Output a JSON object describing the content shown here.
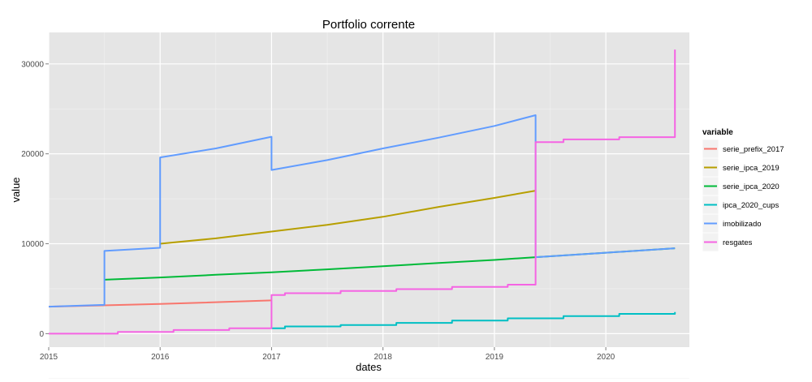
{
  "chart_data": {
    "type": "line",
    "title": "Portfolio corrente",
    "xlabel": "dates",
    "ylabel": "value",
    "xlim": [
      2015.0,
      2020.75
    ],
    "ylim": [
      -1500,
      33500
    ],
    "x_ticks": [
      2015,
      2016,
      2017,
      2018,
      2019,
      2020
    ],
    "y_ticks": [
      0,
      10000,
      20000,
      30000
    ],
    "x_tick_labels": [
      "2015",
      "2016",
      "2017",
      "2018",
      "2019",
      "2020"
    ],
    "y_tick_labels": [
      "0",
      "10000",
      "20000",
      "30000"
    ],
    "grid": true,
    "legend": {
      "title": "variable",
      "position": "right"
    },
    "series": [
      {
        "name": "serie_prefix_2017",
        "color": "#F8766D",
        "points": [
          [
            2015.0,
            3000
          ],
          [
            2016.0,
            3300
          ],
          [
            2017.0,
            3700
          ]
        ]
      },
      {
        "name": "serie_ipca_2019",
        "color": "#B79F00",
        "points": [
          [
            2016.0,
            10000
          ],
          [
            2016.5,
            10600
          ],
          [
            2017.0,
            11350
          ],
          [
            2017.5,
            12100
          ],
          [
            2018.0,
            13000
          ],
          [
            2018.5,
            14100
          ],
          [
            2019.0,
            15100
          ],
          [
            2019.37,
            15900
          ]
        ]
      },
      {
        "name": "serie_ipca_2020",
        "color": "#00BA38",
        "points": [
          [
            2015.5,
            6000
          ],
          [
            2016.0,
            6250
          ],
          [
            2016.5,
            6550
          ],
          [
            2017.0,
            6820
          ],
          [
            2017.5,
            7150
          ],
          [
            2018.0,
            7500
          ],
          [
            2018.5,
            7850
          ],
          [
            2019.0,
            8200
          ],
          [
            2019.37,
            8500
          ],
          [
            2020.0,
            9000
          ],
          [
            2020.62,
            9500
          ]
        ]
      },
      {
        "name": "ipca_2020_cups",
        "color": "#00BFC4",
        "points": [
          [
            2017.0,
            600
          ],
          [
            2017.12,
            600
          ],
          [
            2017.12,
            800
          ],
          [
            2017.62,
            800
          ],
          [
            2017.62,
            950
          ],
          [
            2018.12,
            950
          ],
          [
            2018.12,
            1200
          ],
          [
            2018.62,
            1200
          ],
          [
            2018.62,
            1450
          ],
          [
            2019.12,
            1450
          ],
          [
            2019.12,
            1700
          ],
          [
            2019.62,
            1700
          ],
          [
            2019.62,
            1950
          ],
          [
            2020.12,
            1950
          ],
          [
            2020.12,
            2200
          ],
          [
            2020.62,
            2200
          ],
          [
            2020.62,
            2400
          ]
        ]
      },
      {
        "name": "imobilizado",
        "color": "#619CFF",
        "points": [
          [
            2015.0,
            3000
          ],
          [
            2015.5,
            3200
          ],
          [
            2015.5,
            9200
          ],
          [
            2016.0,
            9550
          ],
          [
            2016.0,
            19600
          ],
          [
            2016.5,
            20600
          ],
          [
            2017.0,
            21900
          ],
          [
            2017.0,
            18200
          ],
          [
            2017.5,
            19300
          ],
          [
            2018.0,
            20600
          ],
          [
            2018.5,
            21800
          ],
          [
            2019.0,
            23100
          ],
          [
            2019.37,
            24300
          ],
          [
            2019.37,
            8500
          ],
          [
            2020.0,
            9000
          ],
          [
            2020.62,
            9500
          ]
        ]
      },
      {
        "name": "resgates",
        "color": "#F564E3",
        "points": [
          [
            2015.0,
            0
          ],
          [
            2015.62,
            0
          ],
          [
            2015.62,
            200
          ],
          [
            2016.12,
            200
          ],
          [
            2016.12,
            400
          ],
          [
            2016.62,
            400
          ],
          [
            2016.62,
            600
          ],
          [
            2017.0,
            600
          ],
          [
            2017.0,
            4300
          ],
          [
            2017.12,
            4300
          ],
          [
            2017.12,
            4500
          ],
          [
            2017.62,
            4500
          ],
          [
            2017.62,
            4750
          ],
          [
            2018.12,
            4750
          ],
          [
            2018.12,
            4950
          ],
          [
            2018.62,
            4950
          ],
          [
            2018.62,
            5200
          ],
          [
            2019.12,
            5200
          ],
          [
            2019.12,
            5450
          ],
          [
            2019.37,
            5450
          ],
          [
            2019.37,
            21300
          ],
          [
            2019.62,
            21300
          ],
          [
            2019.62,
            21600
          ],
          [
            2020.12,
            21600
          ],
          [
            2020.12,
            21850
          ],
          [
            2020.62,
            21850
          ],
          [
            2020.62,
            31600
          ]
        ]
      }
    ]
  }
}
